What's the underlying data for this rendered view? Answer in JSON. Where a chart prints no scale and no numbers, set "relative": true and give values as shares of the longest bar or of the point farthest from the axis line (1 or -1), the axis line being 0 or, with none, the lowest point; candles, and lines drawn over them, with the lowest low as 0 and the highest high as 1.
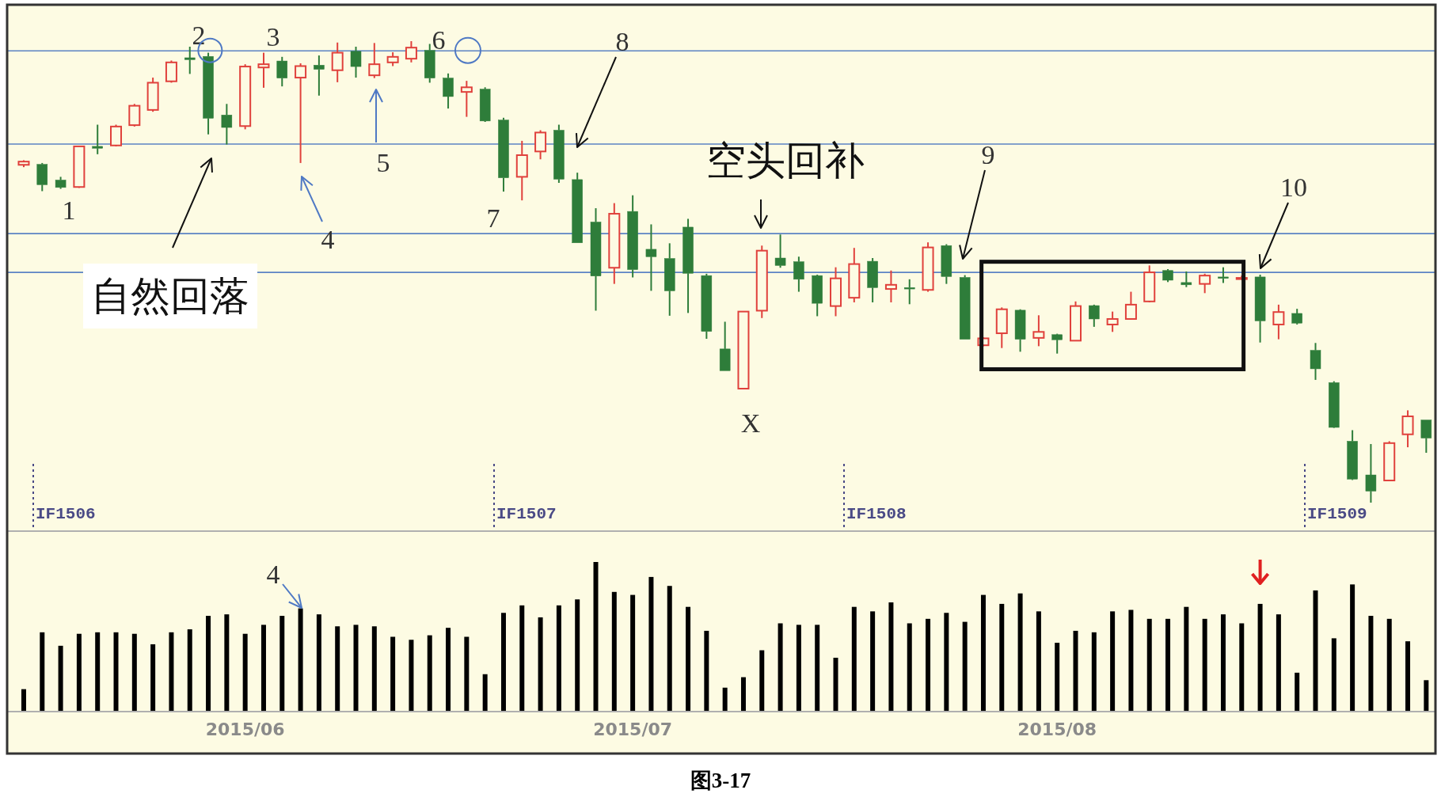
{
  "chart_data": [
    {
      "type": "candlestick",
      "relative": true,
      "tick_labels": false,
      "categories": [
        null,
        null,
        null,
        null,
        null,
        null,
        null,
        null,
        null,
        null,
        null,
        null,
        null,
        null,
        null,
        null,
        null,
        null,
        null,
        null,
        null,
        null,
        null,
        null,
        null,
        null,
        null,
        null,
        null,
        null,
        null,
        null,
        null,
        null,
        null,
        null,
        null,
        null,
        null,
        null,
        null,
        null,
        null,
        null,
        null,
        null,
        null,
        null,
        null,
        null,
        null,
        null,
        null,
        null,
        null,
        null,
        null,
        null,
        null,
        null,
        null,
        null,
        null,
        null,
        null,
        null,
        null,
        null,
        null,
        null,
        null,
        null,
        null,
        null,
        null,
        null,
        null
      ],
      "ohlc": [
        [
          0.732,
          0.742,
          0.727,
          0.739
        ],
        [
          0.733,
          0.736,
          0.675,
          0.689
        ],
        [
          0.699,
          0.706,
          0.68,
          0.683
        ],
        [
          0.684,
          0.773,
          0.682,
          0.772
        ],
        [
          0.772,
          0.819,
          0.755,
          0.768
        ],
        [
          0.774,
          0.819,
          0.772,
          0.815
        ],
        [
          0.818,
          0.864,
          0.815,
          0.86
        ],
        [
          0.851,
          0.921,
          0.847,
          0.91
        ],
        [
          0.913,
          0.958,
          0.91,
          0.954
        ],
        [
          0.964,
          0.988,
          0.929,
          0.96
        ],
        [
          0.967,
          0.975,
          0.798,
          0.833
        ],
        [
          0.84,
          0.864,
          0.776,
          0.813
        ],
        [
          0.816,
          0.95,
          0.809,
          0.945
        ],
        [
          0.943,
          0.975,
          0.899,
          0.95
        ],
        [
          0.957,
          0.966,
          0.902,
          0.92
        ],
        [
          0.921,
          0.952,
          0.736,
          0.946
        ],
        [
          0.948,
          0.969,
          0.882,
          0.939
        ],
        [
          0.937,
          0.997,
          0.911,
          0.975
        ],
        [
          0.978,
          0.988,
          0.921,
          0.945
        ],
        [
          0.926,
          0.996,
          0.92,
          0.95
        ],
        [
          0.954,
          0.976,
          0.946,
          0.966
        ],
        [
          0.962,
          1.0,
          0.954,
          0.986
        ],
        [
          0.98,
          0.994,
          0.91,
          0.92
        ],
        [
          0.92,
          0.93,
          0.854,
          0.88
        ],
        [
          0.89,
          0.914,
          0.836,
          0.9
        ],
        [
          0.896,
          0.9,
          0.825,
          0.827
        ],
        [
          0.829,
          0.834,
          0.674,
          0.704
        ],
        [
          0.706,
          0.784,
          0.655,
          0.753
        ],
        [
          0.761,
          0.807,
          0.744,
          0.802
        ],
        [
          0.807,
          0.819,
          0.693,
          0.701
        ],
        [
          0.7,
          0.715,
          0.563,
          0.563
        ],
        [
          0.608,
          0.638,
          0.416,
          0.491
        ],
        [
          0.509,
          0.649,
          0.474,
          0.626
        ],
        [
          0.631,
          0.666,
          0.488,
          0.505
        ],
        [
          0.549,
          0.603,
          0.459,
          0.533
        ],
        [
          0.529,
          0.562,
          0.405,
          0.459
        ],
        [
          0.597,
          0.615,
          0.411,
          0.497
        ],
        [
          0.492,
          0.496,
          0.355,
          0.371
        ],
        [
          0.333,
          0.392,
          0.286,
          0.286
        ],
        [
          0.247,
          0.414,
          0.246,
          0.414
        ],
        [
          0.416,
          0.557,
          0.4,
          0.546
        ],
        [
          0.53,
          0.581,
          0.509,
          0.514
        ],
        [
          0.522,
          0.533,
          0.457,
          0.484
        ],
        [
          0.492,
          0.494,
          0.404,
          0.432
        ],
        [
          0.426,
          0.51,
          0.404,
          0.486
        ],
        [
          0.444,
          0.552,
          0.434,
          0.517
        ],
        [
          0.523,
          0.53,
          0.434,
          0.466
        ],
        [
          0.463,
          0.503,
          0.434,
          0.472
        ],
        [
          0.466,
          0.484,
          0.43,
          0.463
        ],
        [
          0.461,
          0.564,
          0.457,
          0.553
        ],
        [
          0.557,
          0.56,
          0.474,
          0.49
        ],
        [
          0.488,
          0.493,
          0.354,
          0.354
        ],
        [
          0.341,
          0.358,
          0.339,
          0.356
        ],
        [
          0.367,
          0.423,
          0.335,
          0.419
        ],
        [
          0.417,
          0.419,
          0.327,
          0.354
        ],
        [
          0.357,
          0.406,
          0.339,
          0.37
        ],
        [
          0.364,
          0.366,
          0.323,
          0.353
        ],
        [
          0.351,
          0.436,
          0.35,
          0.426
        ],
        [
          0.427,
          0.429,
          0.381,
          0.398
        ],
        [
          0.386,
          0.414,
          0.37,
          0.398
        ],
        [
          0.398,
          0.457,
          0.397,
          0.429
        ],
        [
          0.436,
          0.514,
          0.434,
          0.499
        ],
        [
          0.503,
          0.506,
          0.478,
          0.482
        ],
        [
          0.477,
          0.501,
          0.467,
          0.472
        ],
        [
          0.474,
          0.496,
          0.454,
          0.492
        ],
        [
          0.489,
          0.51,
          0.476,
          0.486
        ],
        [
          0.485,
          0.492,
          0.483,
          0.487
        ],
        [
          0.489,
          0.494,
          0.347,
          0.394
        ],
        [
          0.386,
          0.429,
          0.354,
          0.413
        ],
        [
          0.41,
          0.42,
          0.386,
          0.389
        ],
        [
          0.33,
          0.346,
          0.266,
          0.29
        ],
        [
          0.26,
          0.263,
          0.162,
          0.163
        ],
        [
          0.133,
          0.157,
          0.049,
          0.051
        ],
        [
          0.06,
          0.127,
          0.0,
          0.025
        ],
        [
          0.048,
          0.133,
          0.047,
          0.129
        ],
        [
          0.148,
          0.2,
          0.12,
          0.187
        ],
        [
          0.179,
          0.179,
          0.108,
          0.14
        ]
      ],
      "colors": [
        "#e0413c",
        "#2e7d3a",
        "#2e7d3a",
        "#e0413c",
        "#2e7d3a",
        "#e0413c",
        "#e0413c",
        "#e0413c",
        "#e0413c",
        "#2e7d3a",
        "#2e7d3a",
        "#2e7d3a",
        "#e0413c",
        "#e0413c",
        "#2e7d3a",
        "#e0413c",
        "#2e7d3a",
        "#e0413c",
        "#2e7d3a",
        "#e0413c",
        "#e0413c",
        "#e0413c",
        "#2e7d3a",
        "#2e7d3a",
        "#e0413c",
        "#2e7d3a",
        "#2e7d3a",
        "#e0413c",
        "#e0413c",
        "#2e7d3a",
        "#2e7d3a",
        "#2e7d3a",
        "#e0413c",
        "#2e7d3a",
        "#2e7d3a",
        "#2e7d3a",
        "#2e7d3a",
        "#2e7d3a",
        "#2e7d3a",
        "#e0413c",
        "#e0413c",
        "#2e7d3a",
        "#2e7d3a",
        "#2e7d3a",
        "#e0413c",
        "#e0413c",
        "#2e7d3a",
        "#e0413c",
        "#2e7d3a",
        "#e0413c",
        "#2e7d3a",
        "#2e7d3a",
        "#e0413c",
        "#e0413c",
        "#2e7d3a",
        "#e0413c",
        "#2e7d3a",
        "#e0413c",
        "#2e7d3a",
        "#e0413c",
        "#e0413c",
        "#e0413c",
        "#2e7d3a",
        "#2e7d3a",
        "#e0413c",
        "#2e7d3a",
        "#e0413c",
        "#2e7d3a",
        "#e0413c",
        "#2e7d3a",
        "#2e7d3a",
        "#2e7d3a",
        "#2e7d3a",
        "#2e7d3a",
        "#e0413c",
        "#e0413c",
        "#2e7d3a"
      ],
      "ref_lines": [
        {
          "axis": "y",
          "value": 0.979,
          "color": "#5b83c4",
          "line_style": "solid"
        },
        {
          "axis": "y",
          "value": 0.777,
          "color": "#5b83c4",
          "line_style": "solid"
        },
        {
          "axis": "y",
          "value": 0.583,
          "color": "#5b83c4",
          "line_style": "solid"
        },
        {
          "axis": "y",
          "value": 0.499,
          "color": "#5b83c4",
          "line_style": "solid"
        }
      ],
      "annotations": [
        "1",
        "2",
        "3",
        "4",
        "5",
        "6",
        "7",
        "8",
        "X",
        "自然回落",
        "空头回补",
        "9",
        "10",
        "IF1506",
        "IF1507",
        "IF1508",
        "IF1509"
      ]
    },
    {
      "type": "bar",
      "relative": true,
      "tick_labels": "x",
      "color": "#000000",
      "categories": [
        null,
        null,
        null,
        null,
        null,
        null,
        null,
        null,
        null,
        null,
        null,
        null,
        "2015/06",
        null,
        null,
        null,
        null,
        null,
        null,
        null,
        null,
        null,
        null,
        null,
        null,
        null,
        null,
        null,
        null,
        null,
        null,
        null,
        null,
        "2015/07",
        null,
        null,
        null,
        null,
        null,
        null,
        null,
        null,
        null,
        null,
        null,
        null,
        null,
        null,
        null,
        null,
        null,
        null,
        null,
        null,
        null,
        null,
        "2015/08",
        null,
        null,
        null,
        null,
        null,
        null,
        null,
        null,
        null,
        null,
        null,
        null,
        null,
        null,
        null,
        null,
        null,
        null,
        null,
        null
      ],
      "values": [
        0.15,
        0.53,
        0.44,
        0.52,
        0.53,
        0.53,
        0.52,
        0.45,
        0.53,
        0.55,
        0.64,
        0.65,
        0.52,
        0.58,
        0.64,
        0.69,
        0.65,
        0.57,
        0.58,
        0.57,
        0.5,
        0.48,
        0.51,
        0.56,
        0.5,
        0.25,
        0.66,
        0.71,
        0.63,
        0.71,
        0.75,
        1.0,
        0.8,
        0.78,
        0.9,
        0.84,
        0.7,
        0.54,
        0.16,
        0.23,
        0.41,
        0.59,
        0.58,
        0.58,
        0.36,
        0.7,
        0.67,
        0.73,
        0.59,
        0.62,
        0.66,
        0.6,
        0.78,
        0.72,
        0.79,
        0.67,
        0.46,
        0.54,
        0.53,
        0.67,
        0.68,
        0.62,
        0.62,
        0.7,
        0.62,
        0.65,
        0.59,
        0.72,
        0.65,
        0.26,
        0.81,
        0.49,
        0.85,
        0.64,
        0.62,
        0.47,
        0.21
      ],
      "annotations": [
        "4",
        "图3-17"
      ]
    }
  ]
}
